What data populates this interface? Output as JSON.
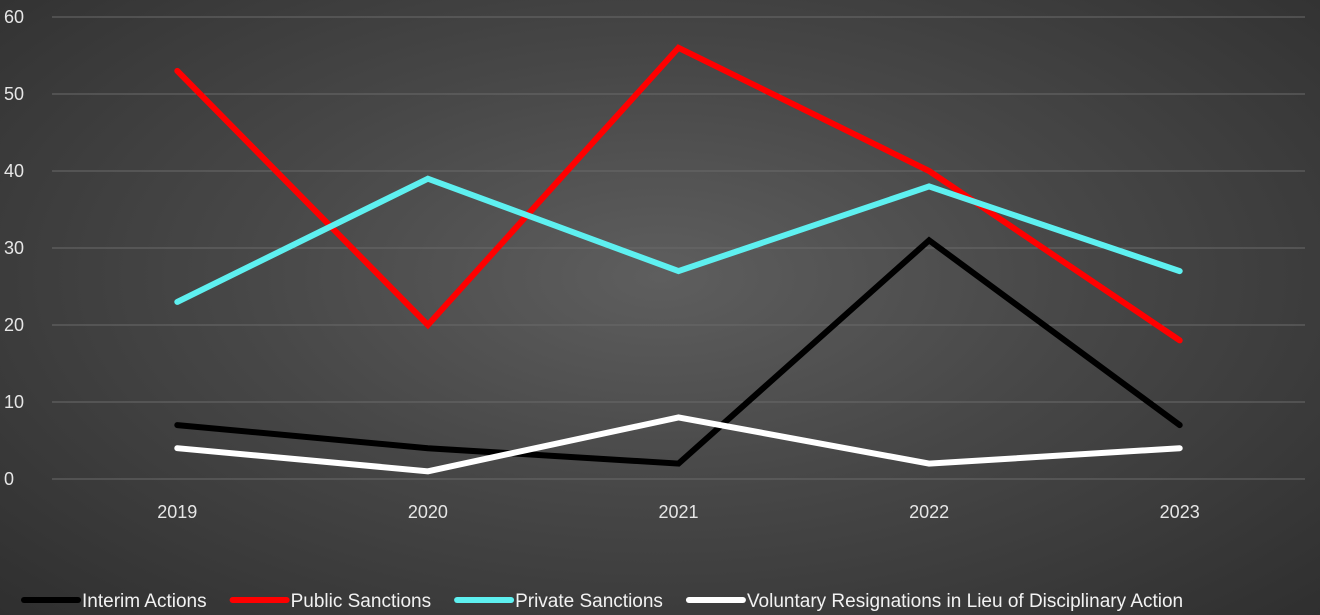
{
  "chart_data": {
    "type": "line",
    "title": "",
    "xlabel": "",
    "ylabel": "",
    "categories": [
      "2019",
      "2020",
      "2021",
      "2022",
      "2023"
    ],
    "ylim": [
      0,
      60
    ],
    "yticks": [
      0,
      10,
      20,
      30,
      40,
      50,
      60
    ],
    "grid": true,
    "legend_position": "bottom",
    "series": [
      {
        "name": "Interim Actions",
        "color": "#000000",
        "values": [
          7,
          4,
          2,
          31,
          7
        ]
      },
      {
        "name": "Public Sanctions",
        "color": "#ff0000",
        "values": [
          53,
          20,
          56,
          40,
          18
        ]
      },
      {
        "name": "Private Sanctions",
        "color": "#5ef0f0",
        "values": [
          23,
          39,
          27,
          38,
          27
        ]
      },
      {
        "name": "Voluntary Resignations in Lieu of Disciplinary Action",
        "color": "#ffffff",
        "values": [
          4,
          1,
          8,
          2,
          4
        ]
      }
    ]
  }
}
